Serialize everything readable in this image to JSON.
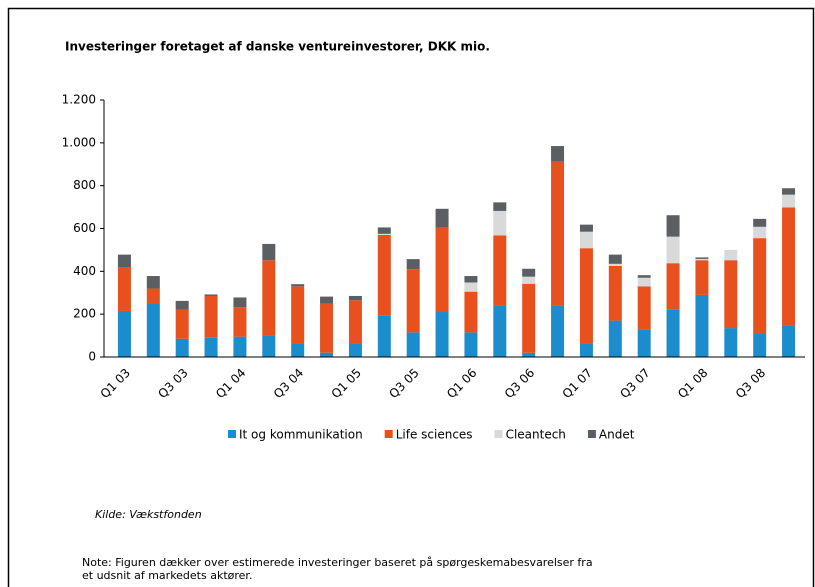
{
  "chart_data": {
    "type": "stacked_bar",
    "title": "Investeringer foretaget af danske ventureinvestorer, DKK mio.",
    "categories": [
      "Q1 03",
      null,
      "Q3 03",
      null,
      "Q1 04",
      null,
      "Q3 04",
      null,
      "Q1 05",
      null,
      "Q3 05",
      null,
      "Q1 06",
      null,
      "Q3 06",
      null,
      "Q1 07",
      null,
      "Q3 07",
      null,
      "Q1 08",
      null,
      "Q3 08",
      null
    ],
    "series": [
      {
        "name": "It og kommunikation",
        "color": "#1b8ccc",
        "values": [
          215,
          250,
          85,
          90,
          95,
          100,
          65,
          20,
          65,
          195,
          115,
          210,
          115,
          240,
          20,
          240,
          65,
          170,
          130,
          220,
          290,
          135,
          110,
          145
        ]
      },
      {
        "name": "Life sciences",
        "color": "#e8501e",
        "values": [
          205,
          70,
          137,
          195,
          137,
          352,
          265,
          230,
          200,
          375,
          295,
          395,
          190,
          328,
          322,
          672,
          443,
          255,
          200,
          218,
          162,
          317,
          445,
          553
        ]
      },
      {
        "name": "Cleantech",
        "color": "#d9d9d9",
        "values": [
          0,
          0,
          0,
          0,
          0,
          0,
          0,
          0,
          0,
          5,
          0,
          0,
          43,
          114,
          33,
          0,
          77,
          10,
          40,
          124,
          6,
          48,
          53,
          60
        ]
      },
      {
        "name": "Andet",
        "color": "#5b5f63",
        "values": [
          58,
          58,
          40,
          7,
          46,
          76,
          10,
          32,
          20,
          30,
          47,
          87,
          30,
          40,
          37,
          73,
          33,
          43,
          12,
          100,
          7,
          0,
          37,
          30
        ]
      }
    ],
    "ylim": [
      0,
      1200
    ],
    "yticks": [
      0,
      200,
      400,
      600,
      800,
      {
        "value": 1000,
        "label": "1.000"
      },
      {
        "value": 1200,
        "label": "1.200"
      }
    ],
    "legend": "bottom",
    "source": "Kilde: Vækstfonden",
    "note": [
      "Note: Figuren dækker over estimerede investeringer baseret på spørgeskemabesvarelser fra",
      "et udsnit af markedets aktører."
    ]
  }
}
